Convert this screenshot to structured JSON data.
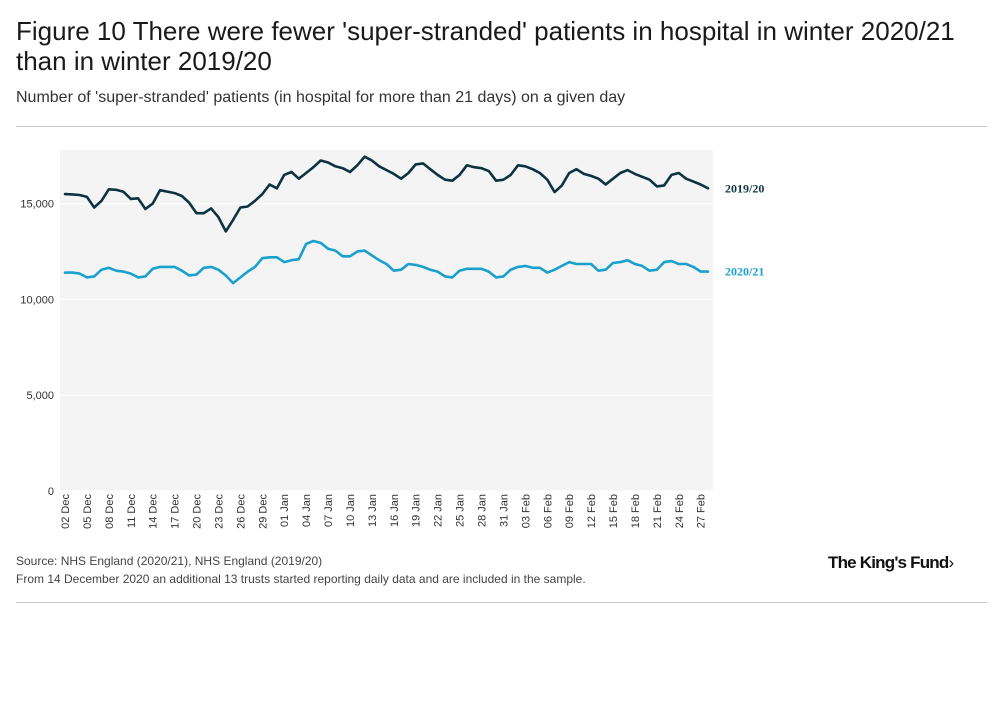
{
  "title": "Figure 10 There were fewer 'super-stranded' patients in hospital in winter 2020/21 than in winter 2019/20",
  "subtitle": "Number of 'super-stranded' patients (in hospital for more than 21 days) on a given day",
  "source_line1": "Source: NHS England (2020/21), NHS England (2019/20)",
  "source_line2": "From 14 December 2020 an additional 13 trusts started reporting daily data and are included in the sample.",
  "logo_text": "The King's Fund",
  "logo_arrow": "›",
  "colors": {
    "series_2019": "#0d3340",
    "series_2020": "#1aa0cc",
    "plot_bg": "#f4f4f4",
    "gridline": "#ffffff",
    "axis_text": "#333333"
  },
  "chart_data": {
    "type": "line",
    "title": "Figure 10 There were fewer 'super-stranded' patients in hospital in winter 2020/21 than in winter 2019/20",
    "xlabel": "",
    "ylabel": "",
    "ylim": [
      0,
      17800
    ],
    "yticks": [
      0,
      5000,
      10000,
      15000
    ],
    "ytick_labels": [
      "0",
      "5,000",
      "10,000",
      "15,000"
    ],
    "grid": true,
    "legend": "direct labels at right end of each line",
    "x_tick_labels": [
      "02 Dec",
      "05 Dec",
      "08 Dec",
      "11 Dec",
      "14 Dec",
      "17 Dec",
      "20 Dec",
      "23 Dec",
      "26 Dec",
      "29 Dec",
      "01 Jan",
      "04 Jan",
      "07 Jan",
      "10 Jan",
      "13 Jan",
      "16 Jan",
      "19 Jan",
      "22 Jan",
      "25 Jan",
      "28 Jan",
      "31 Jan",
      "03 Feb",
      "06 Feb",
      "09 Feb",
      "12 Feb",
      "15 Feb",
      "18 Feb",
      "21 Feb",
      "24 Feb",
      "27 Feb"
    ],
    "x_tick_step_days": 3,
    "series": [
      {
        "name": "2019/20",
        "color": "#0d3340",
        "values": [
          15500,
          15480,
          15450,
          15350,
          14800,
          15150,
          15750,
          15720,
          15620,
          15250,
          15280,
          14720,
          15000,
          15700,
          15630,
          15550,
          15400,
          15050,
          14500,
          14500,
          14750,
          14300,
          13550,
          14150,
          14800,
          14850,
          15150,
          15500,
          16000,
          15800,
          16500,
          16650,
          16300,
          16600,
          16900,
          17250,
          17150,
          16950,
          16850,
          16650,
          17000,
          17450,
          17250,
          16950,
          16750,
          16550,
          16300,
          16600,
          17050,
          17100,
          16800,
          16500,
          16250,
          16200,
          16500,
          17000,
          16900,
          16850,
          16700,
          16200,
          16250,
          16500,
          17000,
          16950,
          16800,
          16600,
          16250,
          15600,
          15950,
          16600,
          16800,
          16550,
          16450,
          16300,
          16000,
          16300,
          16600,
          16750,
          16550,
          16400,
          16250,
          15900,
          15950,
          16500,
          16600,
          16300,
          16150,
          16000,
          15800
        ]
      },
      {
        "name": "2020/21",
        "color": "#1aa0cc",
        "values": [
          11400,
          11400,
          11350,
          11150,
          11200,
          11550,
          11650,
          11500,
          11450,
          11350,
          11150,
          11200,
          11600,
          11700,
          11700,
          11700,
          11500,
          11250,
          11300,
          11650,
          11700,
          11550,
          11250,
          10850,
          11150,
          11450,
          11700,
          12150,
          12200,
          12200,
          11950,
          12050,
          12100,
          12900,
          13050,
          12950,
          12650,
          12550,
          12250,
          12250,
          12500,
          12550,
          12300,
          12050,
          11850,
          11500,
          11550,
          11850,
          11800,
          11700,
          11550,
          11450,
          11200,
          11150,
          11500,
          11600,
          11600,
          11600,
          11450,
          11150,
          11200,
          11550,
          11700,
          11750,
          11650,
          11650,
          11400,
          11550,
          11750,
          11950,
          11850,
          11850,
          11850,
          11500,
          11550,
          11900,
          11950,
          12050,
          11850,
          11750,
          11500,
          11550,
          11950,
          12000,
          11850,
          11850,
          11700,
          11450,
          11450
        ]
      }
    ]
  }
}
